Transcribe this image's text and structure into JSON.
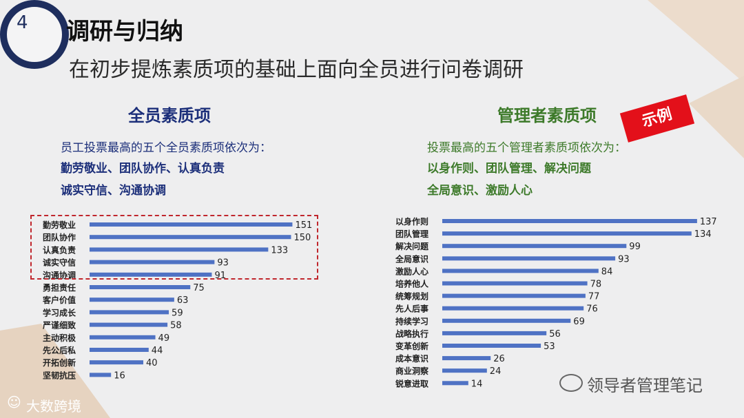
{
  "slide_number": "4",
  "title": "调研与归纳",
  "subtitle": "在初步提炼素质项的基础上面向全员进行问卷调研",
  "left": {
    "heading": "全员素质项",
    "intro": "员工投票最高的五个全员素质项依次为：",
    "top_line1": "勤劳敬业、团队协作、认真负责",
    "top_line2": "诚实守信、沟通协调"
  },
  "right": {
    "heading": "管理者素质项",
    "intro": "投票最高的五个管理者素质项依次为：",
    "top_line1": "以身作则、团队管理、解决问题",
    "top_line2": "全局意识、激励人心",
    "tag": "示例"
  },
  "footer": {
    "brand": "大数跨境",
    "watermark": "领导者管理笔记"
  },
  "colors": {
    "bar": "#4f72c4",
    "highlight_border": "#c0262c",
    "left_heading": "#1c2f7a",
    "right_heading": "#3d7a2a",
    "tag": "#e3101a"
  },
  "chart_data": [
    {
      "type": "bar",
      "orientation": "horizontal",
      "categories": [
        "勤劳敬业",
        "团队协作",
        "认真负责",
        "诚实守信",
        "沟通协调",
        "勇担责任",
        "客户价值",
        "学习成长",
        "严谨细致",
        "主动积极",
        "先公后私",
        "开拓创新",
        "坚韧抗压"
      ],
      "values": [
        151,
        150,
        133,
        93,
        91,
        75,
        63,
        59,
        58,
        49,
        44,
        40,
        16
      ],
      "highlighted_top": 5,
      "data_labels": true
    },
    {
      "type": "bar",
      "orientation": "horizontal",
      "categories": [
        "以身作则",
        "团队管理",
        "解决问题",
        "全局意识",
        "激励人心",
        "培养他人",
        "统筹规划",
        "先人后事",
        "持续学习",
        "战略执行",
        "变革创新",
        "成本意识",
        "商业洞察",
        "锐意进取"
      ],
      "values": [
        137,
        134,
        99,
        93,
        84,
        78,
        77,
        76,
        69,
        56,
        53,
        26,
        24,
        14
      ],
      "data_labels": true
    }
  ]
}
